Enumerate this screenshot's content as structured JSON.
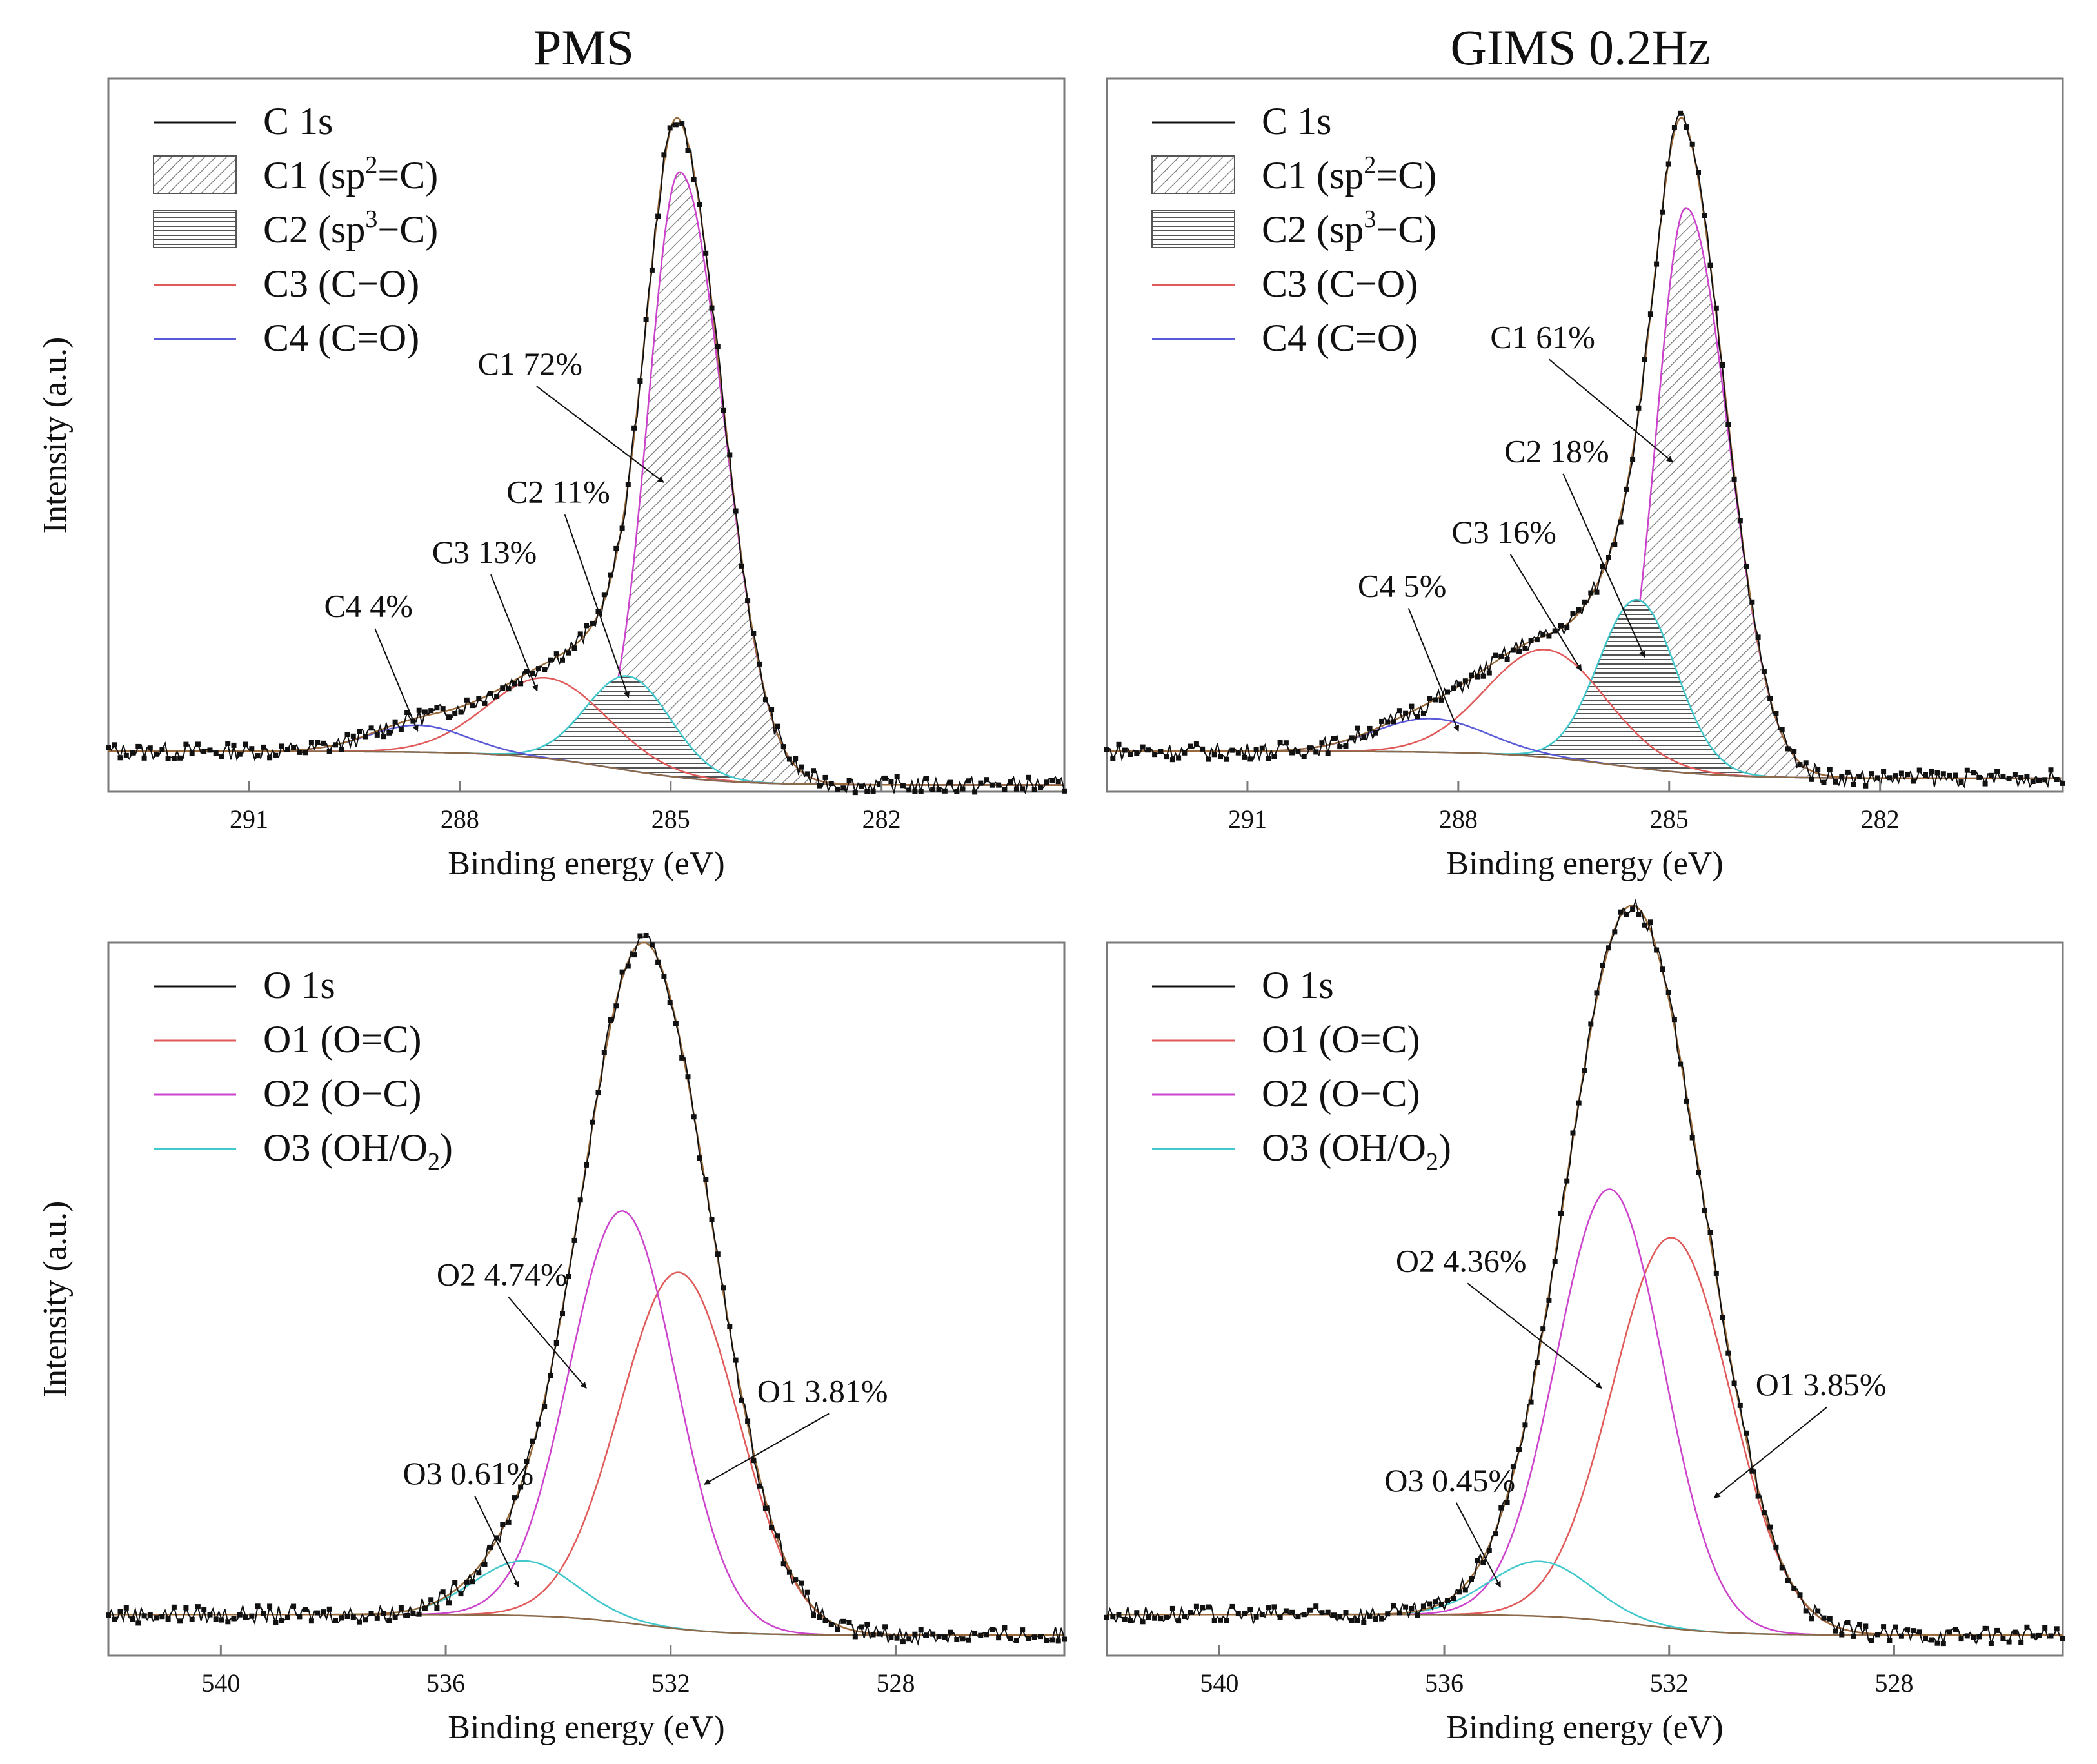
{
  "colors": {
    "frame": "#7a7a7a",
    "data": "#111111",
    "envelope": "#9a6a3a",
    "baseline": "#8c6a4a",
    "c1_edge": "#cc44cc",
    "c2_edge": "#40c8cc",
    "c3": "#e05a5a",
    "c4": "#5a5ad8",
    "o1": "#e05a5a",
    "o2": "#cc44cc",
    "o3": "#40c8cc"
  },
  "column_titles": [
    "PMS",
    "GIMS 0.2Hz"
  ],
  "chart_data": [
    {
      "type": "line",
      "panel": "C1s-PMS",
      "title": "PMS",
      "xlabel": "Binding energy (eV)",
      "ylabel": "Intensity (a.u.)",
      "xlim": [
        293.0,
        279.4
      ],
      "ylim": [
        -0.06,
        1.0
      ],
      "xticks": [
        291,
        288,
        285,
        282
      ],
      "xtick_labels": [
        "291",
        "288",
        "285",
        "282"
      ],
      "grid": false,
      "legend_position": "top-left",
      "legend": [
        {
          "label": "C 1s",
          "kind": "line",
          "color_key": "data"
        },
        {
          "label": "C1 (sp",
          "sup": "2",
          "tail": "=C)",
          "kind": "hatch-diag"
        },
        {
          "label": "C2 (sp",
          "sup": "3",
          "tail": "−C)",
          "kind": "hatch-horiz"
        },
        {
          "label": "C3 (C−O)",
          "kind": "line",
          "color_key": "c3"
        },
        {
          "label": "C4 (C=O)",
          "kind": "line",
          "color_key": "c4"
        }
      ],
      "baseline": {
        "left": 0.0,
        "right": -0.05,
        "center": 285.8,
        "width": 1.5
      },
      "components": [
        {
          "name": "C1",
          "center": 284.87,
          "height": 0.9,
          "sigma_left": 0.45,
          "sigma_right": 0.62,
          "style": "hatch-diag",
          "edge_key": "c1_edge"
        },
        {
          "name": "C2",
          "center": 285.6,
          "height": 0.14,
          "sigma_left": 0.6,
          "sigma_right": 0.6,
          "style": "hatch-horiz",
          "edge_key": "c2_edge"
        },
        {
          "name": "C3",
          "center": 286.75,
          "height": 0.12,
          "sigma_left": 0.85,
          "sigma_right": 0.85,
          "style": "line",
          "edge_key": "c3"
        },
        {
          "name": "C4",
          "center": 288.6,
          "height": 0.04,
          "sigma_left": 0.7,
          "sigma_right": 0.7,
          "style": "line",
          "edge_key": "c4"
        }
      ],
      "annotations": [
        {
          "text": "C1 72%",
          "tx": 287.0,
          "ty": 0.56,
          "ax": 285.1,
          "ay": 0.4
        },
        {
          "text": "C2 11%",
          "tx": 286.6,
          "ty": 0.37,
          "ax": 285.6,
          "ay": 0.08
        },
        {
          "text": "C3 13%",
          "tx": 287.65,
          "ty": 0.28,
          "ax": 286.9,
          "ay": 0.09
        },
        {
          "text": "C4 4%",
          "tx": 289.3,
          "ty": 0.2,
          "ax": 288.6,
          "ay": 0.03
        }
      ]
    },
    {
      "type": "line",
      "panel": "C1s-GIMS",
      "title": "GIMS 0.2Hz",
      "xlabel": "Binding energy (eV)",
      "ylabel": "",
      "xlim": [
        293.0,
        279.4
      ],
      "ylim": [
        -0.06,
        1.0
      ],
      "xticks": [
        291,
        288,
        285,
        282
      ],
      "xtick_labels": [
        "291",
        "288",
        "285",
        "282"
      ],
      "grid": false,
      "legend_position": "top-left",
      "legend": [
        {
          "label": "C 1s",
          "kind": "line",
          "color_key": "data"
        },
        {
          "label": "C1 (sp",
          "sup": "2",
          "tail": "=C)",
          "kind": "hatch-diag"
        },
        {
          "label": "C2 (sp",
          "sup": "3",
          "tail": "−C)",
          "kind": "hatch-horiz"
        },
        {
          "label": "C3 (C−O)",
          "kind": "line",
          "color_key": "c3"
        },
        {
          "label": "C4 (C=O)",
          "kind": "line",
          "color_key": "c4"
        }
      ],
      "baseline": {
        "left": 0.0,
        "right": -0.04,
        "center": 285.8,
        "width": 1.5
      },
      "components": [
        {
          "name": "C1",
          "center": 284.76,
          "height": 0.84,
          "sigma_left": 0.42,
          "sigma_right": 0.6,
          "style": "hatch-diag",
          "edge_key": "c1_edge"
        },
        {
          "name": "C2",
          "center": 285.45,
          "height": 0.25,
          "sigma_left": 0.55,
          "sigma_right": 0.55,
          "style": "hatch-horiz",
          "edge_key": "c2_edge"
        },
        {
          "name": "C3",
          "center": 286.75,
          "height": 0.16,
          "sigma_left": 0.85,
          "sigma_right": 0.85,
          "style": "line",
          "edge_key": "c3"
        },
        {
          "name": "C4",
          "center": 288.4,
          "height": 0.05,
          "sigma_left": 0.8,
          "sigma_right": 0.8,
          "style": "line",
          "edge_key": "c4"
        }
      ],
      "annotations": [
        {
          "text": "C1 61%",
          "tx": 286.8,
          "ty": 0.6,
          "ax": 284.95,
          "ay": 0.43
        },
        {
          "text": "C2 18%",
          "tx": 286.6,
          "ty": 0.43,
          "ax": 285.35,
          "ay": 0.14
        },
        {
          "text": "C3 16%",
          "tx": 287.35,
          "ty": 0.31,
          "ax": 286.25,
          "ay": 0.12
        },
        {
          "text": "C4 5%",
          "tx": 288.8,
          "ty": 0.23,
          "ax": 288.0,
          "ay": 0.03
        }
      ]
    },
    {
      "type": "line",
      "panel": "O1s-PMS",
      "title": "",
      "xlabel": "Binding energy (eV)",
      "ylabel": "Intensity (a.u.)",
      "xlim": [
        542.0,
        525.0
      ],
      "ylim": [
        -0.04,
        1.0
      ],
      "xticks": [
        540,
        536,
        532,
        528
      ],
      "xtick_labels": [
        "540",
        "536",
        "532",
        "528"
      ],
      "grid": false,
      "legend_position": "top-left",
      "legend": [
        {
          "label": "O 1s",
          "kind": "line",
          "color_key": "data"
        },
        {
          "label": "O1 (O=C)",
          "kind": "line",
          "color_key": "o1"
        },
        {
          "label": "O2 (O−C)",
          "kind": "line",
          "color_key": "o2"
        },
        {
          "label": "O3 (OH/O",
          "sub": "2",
          "tail": ")",
          "kind": "line",
          "color_key": "o3"
        }
      ],
      "baseline": {
        "left": 0.02,
        "right": -0.01,
        "center": 532.5,
        "width": 1.5
      },
      "components": [
        {
          "name": "O1",
          "center": 531.85,
          "height": 0.52,
          "sigma_left": 1.05,
          "sigma_right": 1.05,
          "style": "line",
          "edge_key": "o1"
        },
        {
          "name": "O2",
          "center": 532.85,
          "height": 0.6,
          "sigma_left": 0.95,
          "sigma_right": 0.95,
          "style": "line",
          "edge_key": "o2"
        },
        {
          "name": "O3",
          "center": 534.6,
          "height": 0.08,
          "sigma_left": 0.9,
          "sigma_right": 0.9,
          "style": "line",
          "edge_key": "o3"
        }
      ],
      "annotations": [
        {
          "text": "O2 4.74%",
          "tx": 535.0,
          "ty": 0.5,
          "ax": 533.5,
          "ay": 0.35
        },
        {
          "text": "O1 3.81%",
          "tx": 529.3,
          "ty": 0.33,
          "ax": 531.4,
          "ay": 0.21
        },
        {
          "text": "O3 0.61%",
          "tx": 535.6,
          "ty": 0.21,
          "ax": 534.7,
          "ay": 0.06
        }
      ]
    },
    {
      "type": "line",
      "panel": "O1s-GIMS",
      "title": "",
      "xlabel": "Binding energy (eV)",
      "ylabel": "",
      "xlim": [
        542.0,
        525.0
      ],
      "ylim": [
        -0.04,
        1.0
      ],
      "xticks": [
        540,
        536,
        532,
        528
      ],
      "xtick_labels": [
        "540",
        "536",
        "532",
        "528"
      ],
      "grid": false,
      "legend_position": "top-left",
      "legend": [
        {
          "label": "O 1s",
          "kind": "line",
          "color_key": "data"
        },
        {
          "label": "O1 (O=C)",
          "kind": "line",
          "color_key": "o1"
        },
        {
          "label": "O2 (O−C)",
          "kind": "line",
          "color_key": "o2"
        },
        {
          "label": "O3 (OH/O",
          "sub": "2",
          "tail": ")",
          "kind": "line",
          "color_key": "o3"
        }
      ],
      "baseline": {
        "left": 0.02,
        "right": -0.01,
        "center": 532.5,
        "width": 1.5
      },
      "components": [
        {
          "name": "O1",
          "center": 531.95,
          "height": 0.57,
          "sigma_left": 1.05,
          "sigma_right": 1.05,
          "style": "line",
          "edge_key": "o1"
        },
        {
          "name": "O2",
          "center": 533.05,
          "height": 0.63,
          "sigma_left": 0.95,
          "sigma_right": 0.95,
          "style": "line",
          "edge_key": "o2"
        },
        {
          "name": "O3",
          "center": 534.3,
          "height": 0.08,
          "sigma_left": 0.9,
          "sigma_right": 0.9,
          "style": "line",
          "edge_key": "o3"
        }
      ],
      "annotations": [
        {
          "text": "O2 4.36%",
          "tx": 535.7,
          "ty": 0.52,
          "ax": 533.2,
          "ay": 0.35
        },
        {
          "text": "O1 3.85%",
          "tx": 529.3,
          "ty": 0.34,
          "ax": 531.2,
          "ay": 0.19
        },
        {
          "text": "O3 0.45%",
          "tx": 535.9,
          "ty": 0.2,
          "ax": 535.0,
          "ay": 0.06
        }
      ]
    }
  ]
}
